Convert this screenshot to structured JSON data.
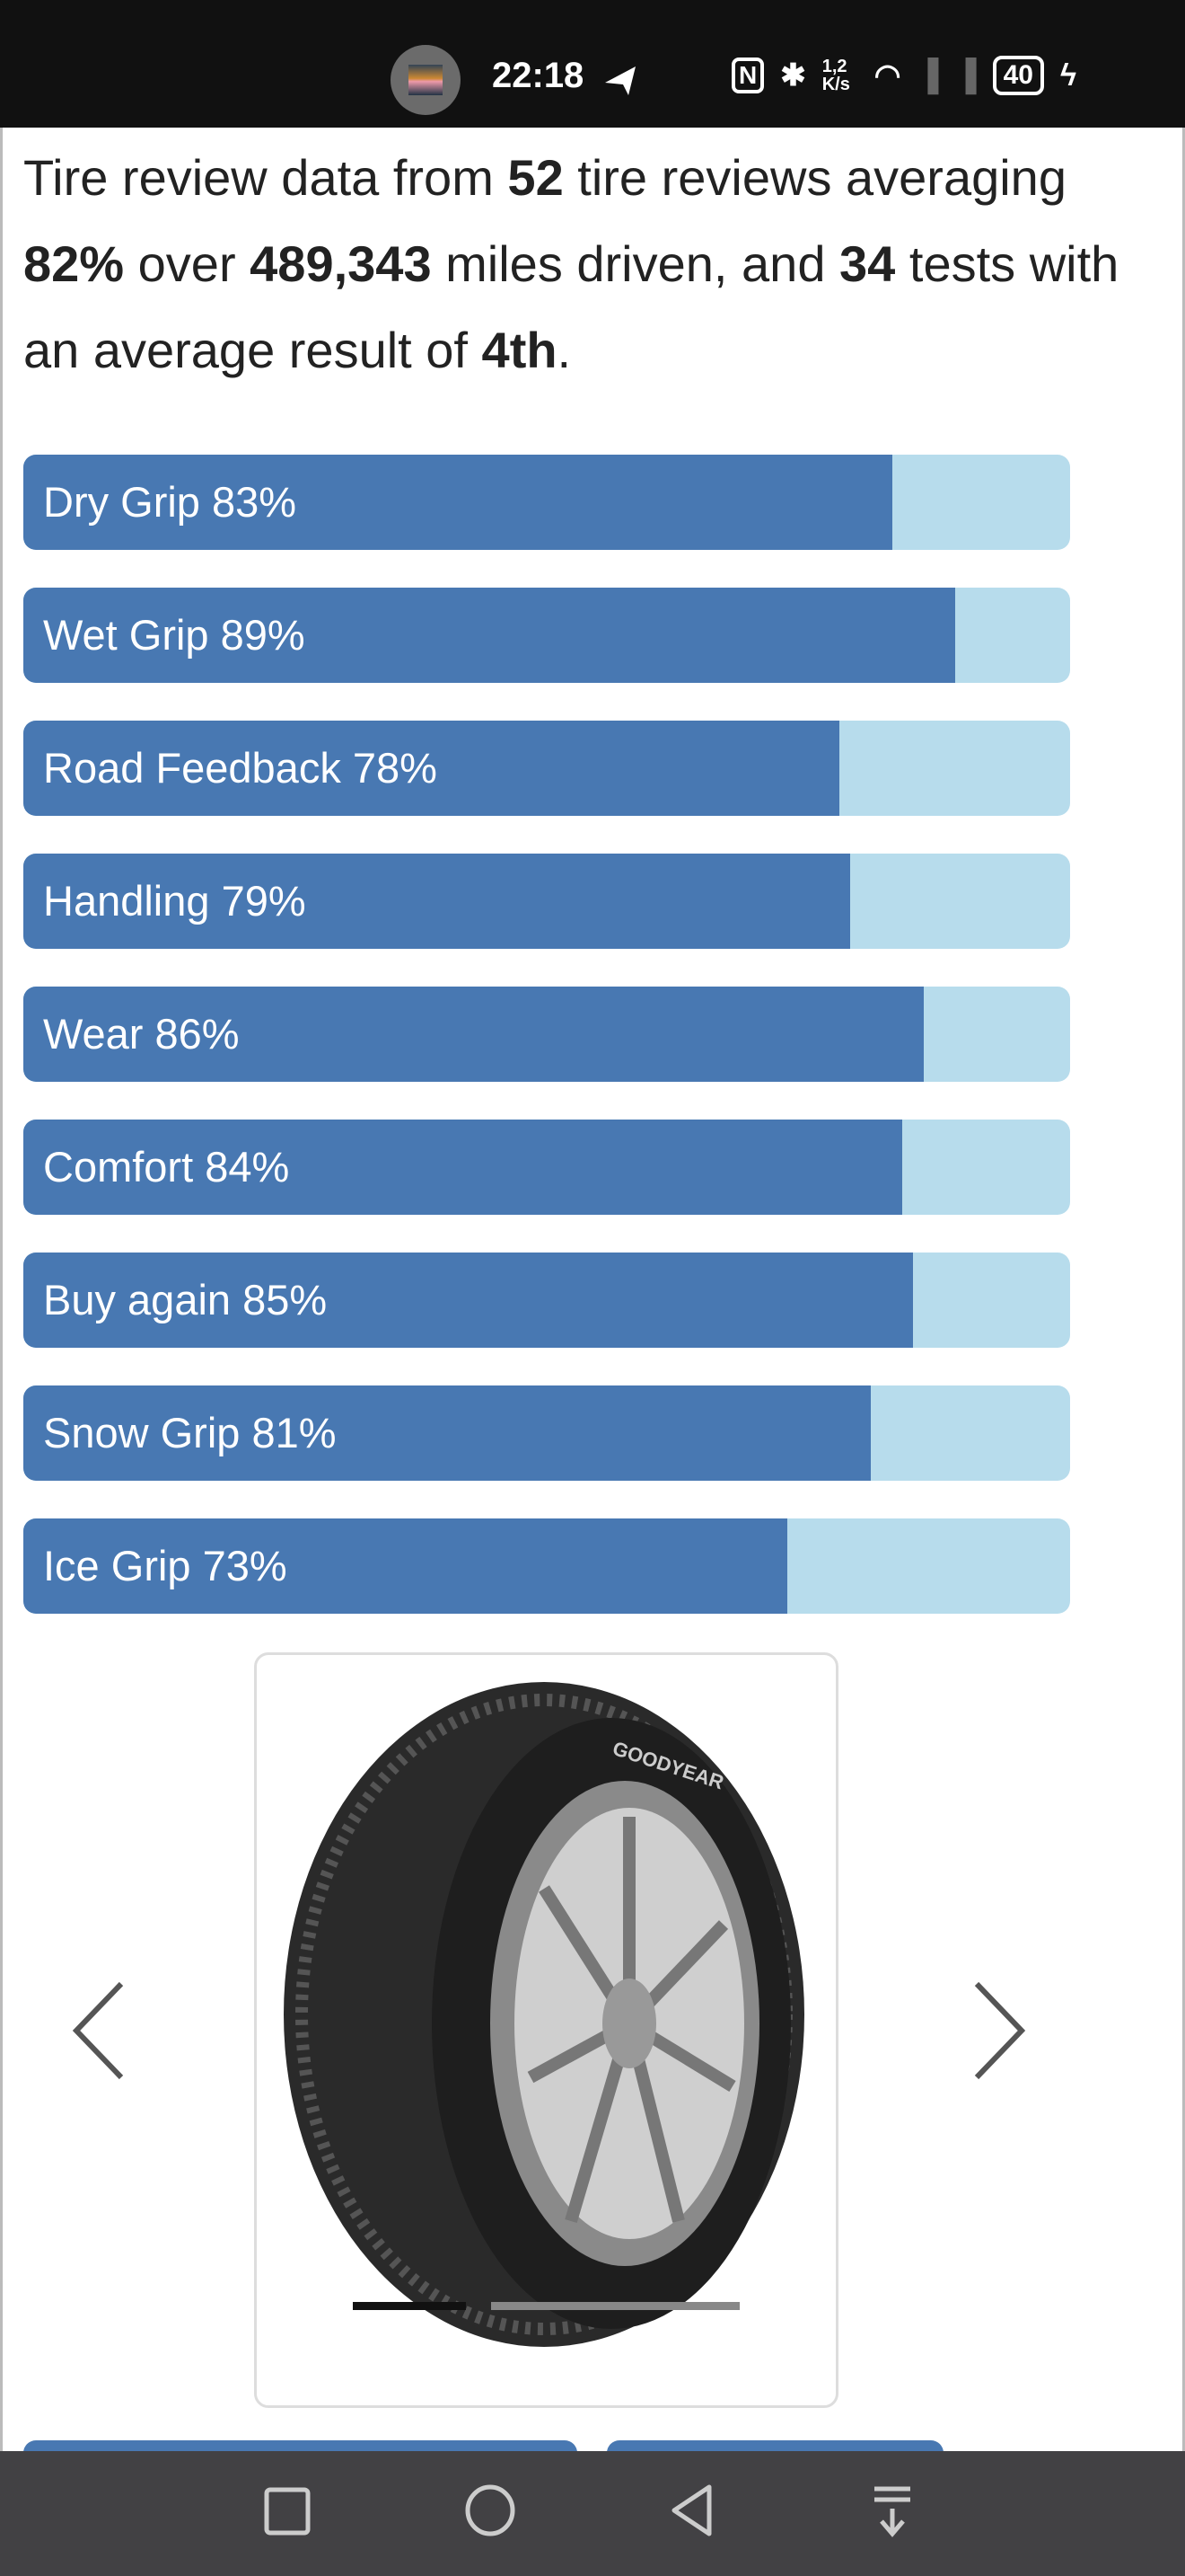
{
  "status_bar": {
    "time": "22:18",
    "network_speed": "1,2 K/s",
    "battery": "40",
    "icons": [
      "telegram-icon",
      "nfc-icon",
      "bluetooth-icon",
      "wifi-icon",
      "signal-icon",
      "signal-icon",
      "battery-icon",
      "charging-icon"
    ]
  },
  "summary": {
    "p1": "Tire review data from ",
    "reviews": "52",
    "p2": " tire reviews averaging ",
    "average": "82%",
    "p3": " over ",
    "miles": "489,343",
    "p4": " miles driven, and ",
    "tests": "34",
    "p5": " tests with an average result of ",
    "result": "4th",
    "p6": "."
  },
  "ratings": [
    {
      "label": "Dry Grip 83%",
      "value": 83
    },
    {
      "label": "Wet Grip 89%",
      "value": 89
    },
    {
      "label": "Road Feedback 78%",
      "value": 78
    },
    {
      "label": "Handling 79%",
      "value": 79
    },
    {
      "label": "Wear 86%",
      "value": 86
    },
    {
      "label": "Comfort 84%",
      "value": 84
    },
    {
      "label": "Buy again 85%",
      "value": 85
    },
    {
      "label": "Snow Grip 81%",
      "value": 81
    },
    {
      "label": "Ice Grip 73%",
      "value": 73
    }
  ],
  "carousel": {
    "image": "goodyear-tire-image",
    "logo_text": "GOODYEAR",
    "active_slide": 1,
    "slides": 2
  },
  "colors": {
    "bar_fill": "#4878b2",
    "bar_track": "#b7dcec",
    "nav_bar": "#424144"
  }
}
